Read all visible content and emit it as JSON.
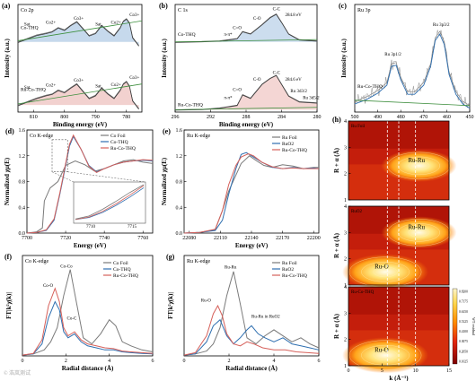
{
  "chart_data": [
    {
      "id": "a",
      "panel_label": "(a)",
      "type": "line",
      "title": "Co 2p",
      "xlabel": "Binding energy (eV)",
      "ylabel": "Intensity (a.u.)",
      "xlim": [
        815,
        775
      ],
      "xticks": [
        810,
        800,
        790,
        780
      ],
      "reversed": true,
      "series": [
        {
          "name": "Co-THQ",
          "x": [
            815,
            812,
            809,
            806,
            804,
            802,
            800,
            798,
            796,
            794,
            792,
            790,
            788,
            786,
            784,
            782,
            781,
            780,
            779,
            778,
            776
          ],
          "values": [
            3.0,
            3.15,
            3.3,
            3.38,
            3.45,
            3.62,
            3.52,
            3.72,
            3.88,
            3.58,
            3.28,
            3.38,
            3.72,
            3.48,
            3.28,
            3.62,
            3.9,
            4.0,
            3.82,
            3.2,
            2.85
          ]
        },
        {
          "name": "Ru-Co-THQ",
          "x": [
            815,
            812,
            809,
            806,
            804,
            802,
            800,
            798,
            796,
            794,
            792,
            790,
            788,
            786,
            784,
            782,
            781,
            780,
            779,
            778,
            776
          ],
          "values": [
            0.3,
            0.45,
            0.6,
            0.72,
            0.78,
            0.95,
            0.85,
            1.05,
            1.22,
            0.9,
            0.6,
            0.72,
            1.05,
            0.8,
            0.6,
            0.95,
            1.22,
            1.32,
            1.12,
            0.5,
            0.15
          ]
        }
      ],
      "annotations": [
        "Sat.",
        "Co2+",
        "Co3+",
        "Sat.",
        "Co2+",
        "Co3+",
        "Sat.",
        "Co2+",
        "Co3+",
        "Sat.",
        "Co2+",
        "Co3+"
      ]
    },
    {
      "id": "b",
      "panel_label": "(b)",
      "type": "line",
      "title": "C 1s",
      "xlabel": "Binding energy (eV)",
      "ylabel": "Intensity (a.u.)",
      "xlim": [
        296,
        280
      ],
      "xticks": [
        296,
        292,
        288,
        284,
        280
      ],
      "reversed": true,
      "series": [
        {
          "name": "Co-THQ",
          "x": [
            296,
            293,
            291,
            289,
            288.4,
            287.5,
            286.2,
            285.3,
            284.6,
            284.0,
            283.2,
            282,
            280
          ],
          "values": [
            3.0,
            3.02,
            3.05,
            3.15,
            3.45,
            3.35,
            3.75,
            4.05,
            4.2,
            3.85,
            3.35,
            3.1,
            3.05
          ]
        },
        {
          "name": "Ru-Co-THQ",
          "x": [
            296,
            293,
            291,
            289,
            288.4,
            287.5,
            286.2,
            285.3,
            284.6,
            284.0,
            283.2,
            282,
            280
          ],
          "values": [
            0.1,
            0.12,
            0.18,
            0.3,
            0.75,
            0.6,
            1.2,
            1.45,
            1.58,
            1.2,
            0.7,
            0.45,
            0.4
          ]
        }
      ],
      "annotations": [
        "C=O",
        "C-O",
        "C-C",
        "284.8 eV",
        "π-π*",
        "C=O",
        "C-O",
        "C-C",
        "284.6 eV",
        "π-π*",
        "Ru 3d3/2",
        "Ru 3d5/2"
      ]
    },
    {
      "id": "c",
      "panel_label": "(c)",
      "type": "line",
      "title": "Ru 3p",
      "xlabel": "Binding energy (eV)",
      "ylabel": "Intensity (a.u.)",
      "xlim": [
        500,
        450
      ],
      "xticks": [
        500,
        490,
        480,
        470,
        460,
        450
      ],
      "reversed": true,
      "series": [
        {
          "name": "Ru-Co-THQ",
          "x": [
            500,
            495,
            490,
            486,
            484,
            482,
            480,
            477,
            474,
            470,
            467,
            465,
            463,
            461,
            459,
            456,
            453,
            450
          ],
          "values": [
            0.2,
            0.28,
            0.4,
            0.55,
            0.9,
            0.92,
            0.65,
            0.38,
            0.38,
            0.55,
            0.9,
            1.38,
            1.5,
            1.3,
            0.75,
            0.38,
            0.2,
            0.12
          ]
        }
      ],
      "annotations": [
        "Ru 3p1/2",
        "Ru 3p3/2"
      ]
    },
    {
      "id": "d",
      "panel_label": "(d)",
      "type": "line",
      "title": "Co K-edge",
      "xlabel": "Energy (eV)",
      "ylabel": "Normalized χμ(E)",
      "xlim": [
        7700,
        7765
      ],
      "ylim": [
        0,
        1.6
      ],
      "xticks": [
        7700,
        7720,
        7740,
        7760
      ],
      "yticks": [
        0.0,
        0.4,
        0.8,
        1.2,
        1.6
      ],
      "series": [
        {
          "name": "Co Foil",
          "x": [
            7700,
            7705,
            7708,
            7709,
            7712,
            7716,
            7720,
            7725,
            7730,
            7735,
            7740,
            7745,
            7750,
            7755,
            7760,
            7765
          ],
          "values": [
            0.0,
            0.02,
            0.08,
            0.5,
            0.7,
            0.8,
            1.05,
            1.12,
            1.06,
            0.96,
            1.0,
            1.06,
            1.12,
            1.14,
            1.1,
            1.08
          ]
        },
        {
          "name": "Co-THQ",
          "x": [
            7700,
            7705,
            7710,
            7714,
            7717,
            7720,
            7722,
            7724,
            7728,
            7732,
            7736,
            7740,
            7745,
            7750,
            7755,
            7760,
            7765
          ],
          "values": [
            0.0,
            0.01,
            0.04,
            0.2,
            0.6,
            1.05,
            1.35,
            1.5,
            1.3,
            1.05,
            0.95,
            1.0,
            1.06,
            1.1,
            1.12,
            1.13,
            1.12
          ]
        },
        {
          "name": "Ru-Co-THQ",
          "x": [
            7700,
            7705,
            7710,
            7714,
            7717,
            7720,
            7722,
            7724,
            7728,
            7732,
            7736,
            7740,
            7745,
            7750,
            7755,
            7760,
            7765
          ],
          "values": [
            0.0,
            0.01,
            0.05,
            0.22,
            0.62,
            1.08,
            1.38,
            1.52,
            1.3,
            1.04,
            0.94,
            1.0,
            1.06,
            1.1,
            1.12,
            1.14,
            1.13
          ]
        }
      ],
      "inset_xticks": [
        "7710",
        "7715"
      ]
    },
    {
      "id": "e",
      "panel_label": "(e)",
      "type": "line",
      "title": "Ru K-edge",
      "xlabel": "Energy (eV)",
      "ylabel": "Normalized χμ(E)",
      "xlim": [
        22075,
        22205
      ],
      "ylim": [
        0,
        1.6
      ],
      "xticks": [
        22080,
        22110,
        22140,
        22170,
        22200
      ],
      "yticks": [
        0.0,
        0.4,
        0.8,
        1.2,
        1.6
      ],
      "series": [
        {
          "name": "Ru Foil",
          "x": [
            22075,
            22090,
            22105,
            22112,
            22118,
            22125,
            22130,
            22138,
            22145,
            22152,
            22160,
            22170,
            22180,
            22190,
            22200,
            22205
          ],
          "values": [
            0.0,
            0.01,
            0.05,
            0.35,
            0.65,
            0.9,
            1.08,
            1.2,
            1.12,
            1.05,
            1.02,
            1.06,
            1.04,
            1.0,
            1.02,
            1.02
          ]
        },
        {
          "name": "RuO2",
          "x": [
            22075,
            22090,
            22105,
            22112,
            22118,
            22125,
            22130,
            22135,
            22142,
            22150,
            22160,
            22170,
            22180,
            22190,
            22200,
            22205
          ],
          "values": [
            0.0,
            0.01,
            0.04,
            0.2,
            0.6,
            1.0,
            1.22,
            1.25,
            1.18,
            1.1,
            1.02,
            1.0,
            1.02,
            1.0,
            1.01,
            1.0
          ]
        },
        {
          "name": "Ru-Co-THQ",
          "x": [
            22075,
            22090,
            22105,
            22112,
            22118,
            22125,
            22130,
            22137,
            22142,
            22150,
            22160,
            22170,
            22180,
            22190,
            22200,
            22205
          ],
          "values": [
            0.0,
            0.01,
            0.06,
            0.35,
            0.75,
            1.05,
            1.18,
            1.23,
            1.2,
            1.1,
            1.03,
            1.0,
            1.01,
            1.0,
            1.0,
            1.0
          ]
        }
      ]
    },
    {
      "id": "f",
      "panel_label": "(f)",
      "type": "line",
      "title": "Co K-edge",
      "xlabel": "Radial distance (Å)",
      "ylabel": "FT|k²χ(k)|",
      "xlim": [
        0,
        6
      ],
      "xticks": [
        0,
        2,
        4,
        6
      ],
      "series": [
        {
          "name": "Co Foil",
          "x": [
            0,
            0.5,
            1.0,
            1.3,
            1.6,
            1.9,
            2.2,
            2.5,
            2.8,
            3.2,
            3.6,
            4.0,
            4.3,
            4.6,
            5.0,
            5.5,
            6.0
          ],
          "values": [
            0.02,
            0.05,
            0.15,
            0.35,
            0.7,
            1.5,
            2.15,
            1.3,
            0.45,
            0.3,
            0.55,
            0.9,
            0.75,
            0.35,
            0.25,
            0.15,
            0.1
          ]
        },
        {
          "name": "Co-THQ",
          "x": [
            0,
            0.5,
            0.9,
            1.2,
            1.5,
            1.7,
            1.9,
            2.1,
            2.4,
            2.7,
            3.0,
            3.4,
            3.8,
            4.2,
            4.6,
            5.0,
            5.5,
            6.0
          ],
          "values": [
            0.02,
            0.05,
            0.3,
            0.95,
            1.35,
            1.15,
            0.6,
            0.45,
            0.55,
            0.35,
            0.25,
            0.2,
            0.15,
            0.15,
            0.1,
            0.08,
            0.06,
            0.05
          ]
        },
        {
          "name": "Ru-Co-THQ",
          "x": [
            0,
            0.5,
            0.9,
            1.2,
            1.5,
            1.7,
            1.9,
            2.1,
            2.4,
            2.7,
            3.0,
            3.4,
            3.8,
            4.2,
            4.6,
            5.0,
            5.5,
            6.0
          ],
          "values": [
            0.02,
            0.06,
            0.4,
            1.25,
            1.68,
            1.35,
            0.7,
            0.5,
            0.6,
            0.4,
            0.3,
            0.25,
            0.2,
            0.18,
            0.12,
            0.1,
            0.08,
            0.06
          ]
        }
      ],
      "annotations": [
        "Co-Co",
        "Co-O",
        "Co-C"
      ]
    },
    {
      "id": "g",
      "panel_label": "(g)",
      "type": "line",
      "title": "Ru K-edge",
      "xlabel": "Radial distance (Å)",
      "ylabel": "FT|k²χ(k)|",
      "xlim": [
        0,
        6
      ],
      "xticks": [
        0,
        2,
        4,
        6
      ],
      "series": [
        {
          "name": "Ru Foil",
          "x": [
            0,
            0.5,
            1.0,
            1.3,
            1.6,
            1.9,
            2.2,
            2.5,
            2.8,
            3.2,
            3.6,
            4.0,
            4.4,
            4.8,
            5.2,
            5.6,
            6.0
          ],
          "values": [
            0.02,
            0.05,
            0.12,
            0.3,
            0.7,
            1.5,
            2.1,
            1.3,
            0.45,
            0.3,
            0.5,
            0.65,
            0.5,
            0.35,
            0.45,
            0.3,
            0.2
          ]
        },
        {
          "name": "RuO2",
          "x": [
            0,
            0.5,
            1.0,
            1.3,
            1.6,
            1.9,
            2.2,
            2.5,
            2.8,
            3.0,
            3.3,
            3.6,
            4.0,
            4.4,
            4.8,
            5.2,
            5.6,
            6.0
          ],
          "values": [
            0.02,
            0.05,
            0.35,
            0.75,
            0.9,
            0.5,
            0.3,
            0.45,
            0.65,
            0.75,
            0.55,
            0.45,
            0.35,
            0.45,
            0.3,
            0.25,
            0.2,
            0.15
          ]
        },
        {
          "name": "Ru-Co-THQ",
          "x": [
            0,
            0.5,
            1.0,
            1.3,
            1.5,
            1.7,
            1.9,
            2.2,
            2.5,
            2.8,
            3.1,
            3.5,
            4.0,
            4.5,
            5.0,
            5.5,
            6.0
          ],
          "values": [
            0.02,
            0.08,
            0.5,
            1.05,
            1.25,
            1.0,
            0.55,
            0.3,
            0.25,
            0.35,
            0.3,
            0.2,
            0.15,
            0.15,
            0.1,
            0.08,
            0.06
          ]
        }
      ],
      "annotations": [
        "Ru-Ru",
        "Ru-O",
        "Ru-Ru in RuO2"
      ]
    },
    {
      "id": "h",
      "panel_label": "(h)",
      "type": "heatmap",
      "xlabel": "k (Å⁻¹)",
      "ylabel": "R + α (Å)",
      "xlim": [
        0,
        15
      ],
      "ylim": [
        1,
        4
      ],
      "xticks": [
        0,
        5,
        10,
        15
      ],
      "yticks": [
        1,
        2,
        3,
        4
      ],
      "panels": [
        {
          "label": "Ru Foil",
          "peaks": [
            {
              "name": "Ru-Ru",
              "k": 10.5,
              "r": 2.3
            }
          ]
        },
        {
          "label": "RuO2",
          "peaks": [
            {
              "name": "Ru-O",
              "k": 5.5,
              "r": 1.5
            },
            {
              "name": "Ru-Ru",
              "k": 10.5,
              "r": 3.0
            }
          ]
        },
        {
          "label": "Ru-Co-THQ",
          "peaks": [
            {
              "name": "Ru-O",
              "k": 5.5,
              "r": 1.4
            }
          ]
        }
      ],
      "dashed_lines_k": [
        5.8,
        7.5,
        10.0
      ],
      "colorbar": {
        "label": "WT residual",
        "ticks": [
          "0.1025",
          "0.2050",
          "0.3075",
          "0.4100",
          "0.5125",
          "0.6150",
          "0.7175",
          "0.8200"
        ]
      }
    }
  ],
  "colors": {
    "co_thq": "#2f6fb0",
    "ru_co_thq": "#d6605a",
    "foil": "#7a7a7a",
    "ruo2": "#2f6fb0",
    "fit_envelope": "#3a3a3a",
    "baseline": "#3e8f3e",
    "peak_fill_blue": "#8db3d9",
    "peak_fill_red": "#e6a3a0"
  },
  "watermark": "© 浩岚测试"
}
